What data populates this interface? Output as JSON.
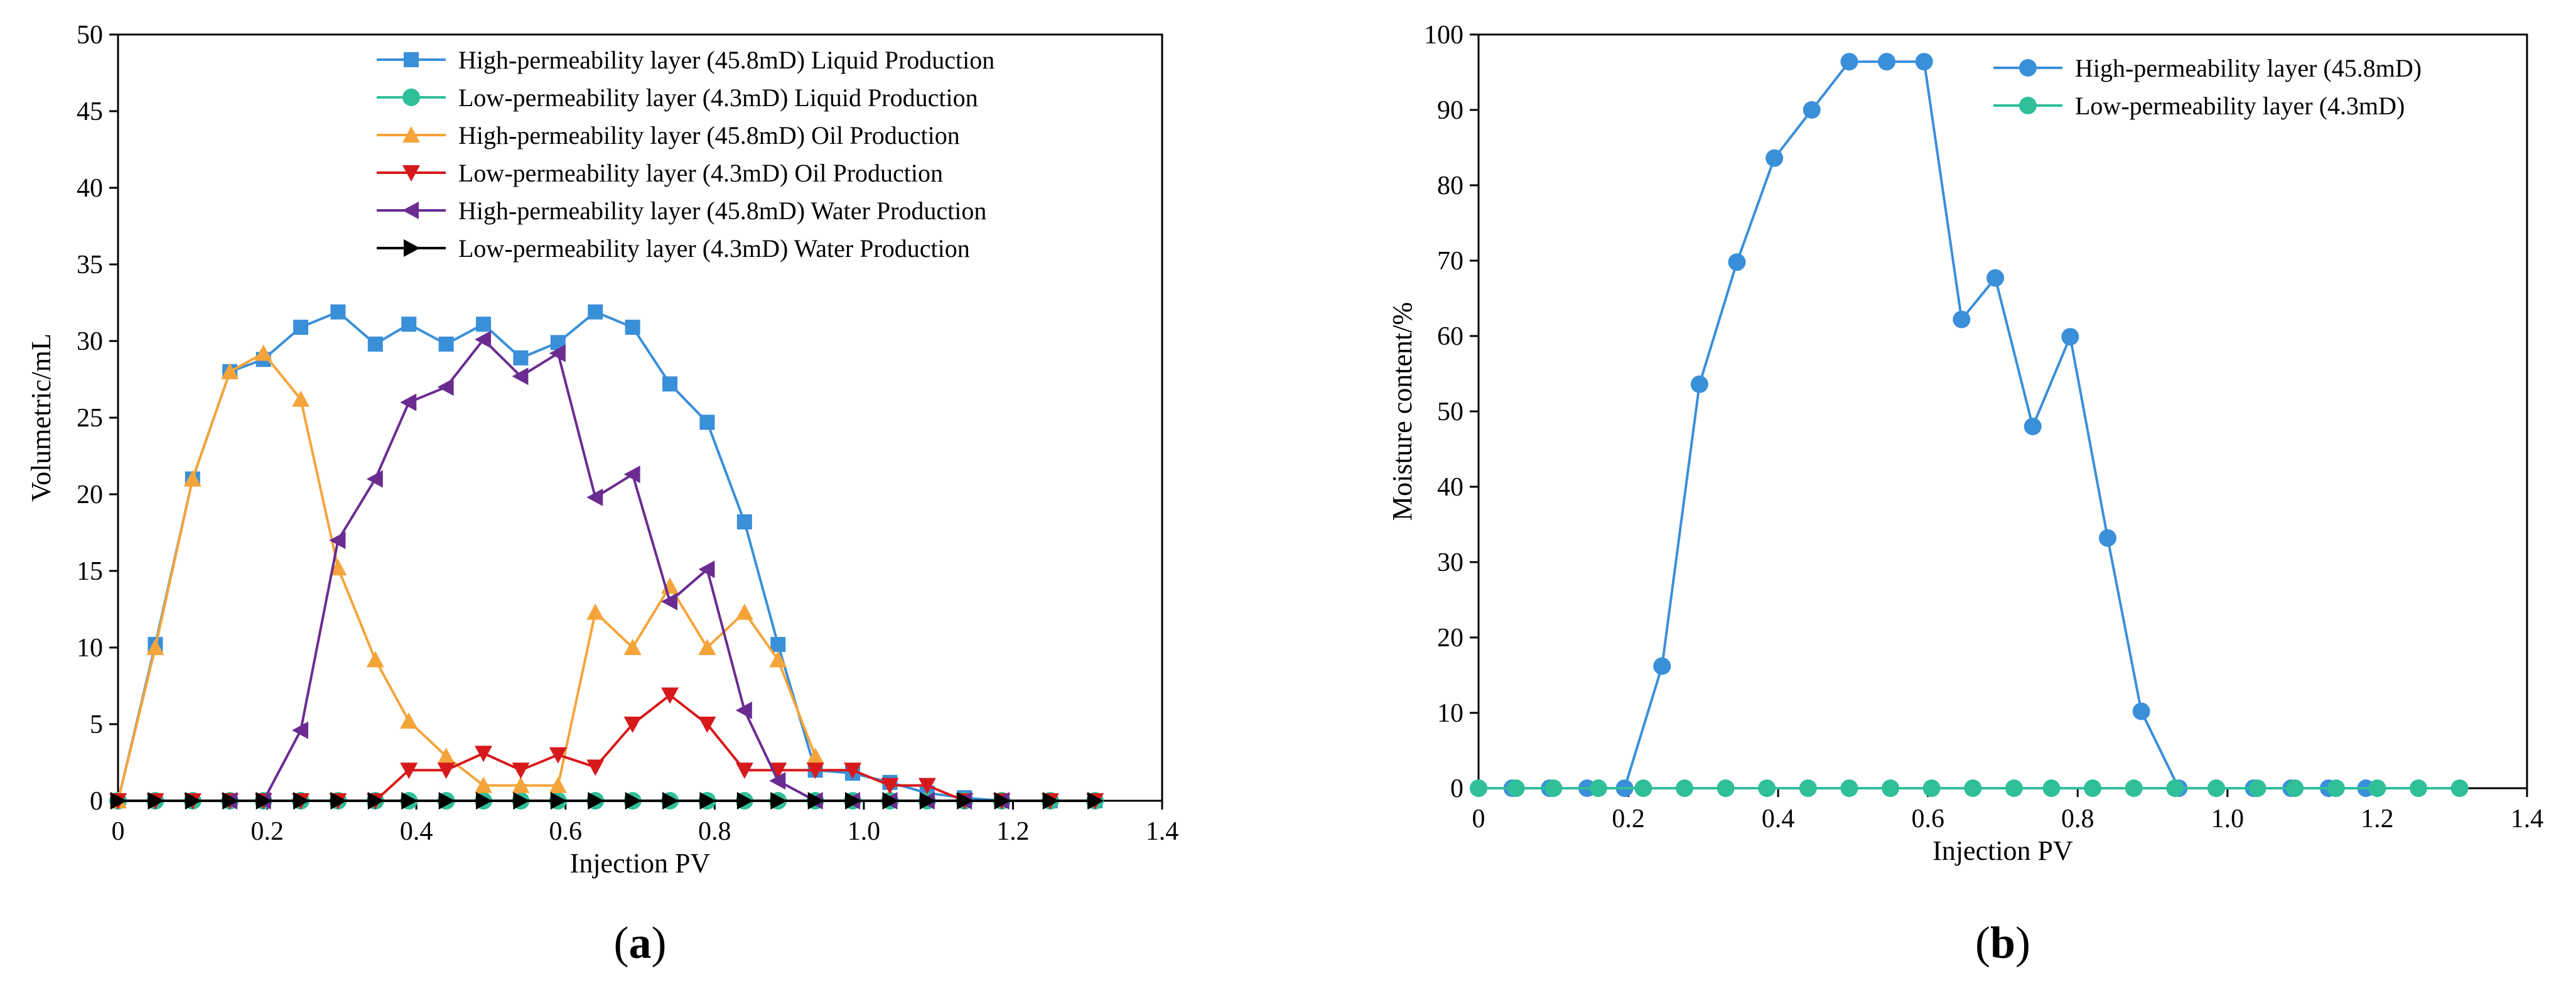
{
  "chart_data": [
    {
      "type": "line",
      "panel_label": "a",
      "xlabel": "Injection PV",
      "ylabel": "Volumetric/mL",
      "xlim": [
        0,
        1.4
      ],
      "ylim": [
        0,
        50
      ],
      "xticks": [
        "0",
        "0.2",
        "0.4",
        "0.6",
        "0.8",
        "1.0",
        "1.2",
        "1.4"
      ],
      "xtick_values": [
        0,
        0.2,
        0.4,
        0.6,
        0.8,
        1.0,
        1.2,
        1.4
      ],
      "yticks": [
        "0",
        "5",
        "10",
        "15",
        "20",
        "25",
        "30",
        "35",
        "40",
        "45",
        "50"
      ],
      "ytick_values": [
        0,
        5,
        10,
        15,
        20,
        25,
        30,
        35,
        40,
        45,
        50
      ],
      "grid": false,
      "legend_position": "top-right",
      "series": [
        {
          "name": "High-permeability layer (45.8mD) Liquid Production",
          "color": "#3a8fd9",
          "marker": "square",
          "x": [
            0,
            0.05,
            0.1,
            0.15,
            0.195,
            0.245,
            0.295,
            0.345,
            0.39,
            0.44,
            0.49,
            0.54,
            0.59,
            0.64,
            0.69,
            0.74,
            0.79,
            0.84,
            0.885,
            0.935,
            0.985,
            1.035,
            1.085,
            1.135,
            1.185,
            1.25,
            1.31
          ],
          "y": [
            0,
            10.2,
            21,
            28,
            28.8,
            30.9,
            31.9,
            29.8,
            31.1,
            29.8,
            31.1,
            28.9,
            29.9,
            31.9,
            30.9,
            27.2,
            24.7,
            18.2,
            10.2,
            2,
            1.8,
            1.2,
            0.5,
            0.2,
            0,
            0,
            0
          ]
        },
        {
          "name": "Low-permeability layer (4.3mD) Liquid Production",
          "color": "#2fbf99",
          "marker": "circle",
          "x": [
            0,
            0.05,
            0.1,
            0.15,
            0.195,
            0.245,
            0.295,
            0.345,
            0.39,
            0.44,
            0.49,
            0.54,
            0.59,
            0.64,
            0.69,
            0.74,
            0.79,
            0.84,
            0.885,
            0.935,
            0.985,
            1.035,
            1.085,
            1.135,
            1.185,
            1.25,
            1.31
          ],
          "y": [
            0,
            0,
            0,
            0,
            0,
            0,
            0,
            0,
            0,
            0,
            0,
            0,
            0,
            0,
            0,
            0,
            0,
            0,
            0,
            0,
            0,
            0,
            0,
            0,
            0,
            0,
            0
          ]
        },
        {
          "name": "High-permeability layer (45.8mD) Oil Production",
          "color": "#f5a43a",
          "marker": "triangle-up",
          "x": [
            0,
            0.05,
            0.1,
            0.15,
            0.195,
            0.245,
            0.295,
            0.345,
            0.39,
            0.44,
            0.49,
            0.54,
            0.59,
            0.64,
            0.69,
            0.74,
            0.79,
            0.84,
            0.885,
            0.935
          ],
          "y": [
            0,
            10,
            21,
            28,
            29.2,
            26.2,
            15.2,
            9.2,
            5.2,
            2.9,
            1,
            1,
            1,
            12.3,
            10,
            14,
            10,
            12.3,
            9.2,
            2.9
          ]
        },
        {
          "name": "Low-permeability layer (4.3mD) Oil Production",
          "color": "#d7191c",
          "marker": "triangle-down",
          "x": [
            0,
            0.05,
            0.1,
            0.15,
            0.195,
            0.245,
            0.295,
            0.345,
            0.39,
            0.44,
            0.49,
            0.54,
            0.59,
            0.64,
            0.69,
            0.74,
            0.79,
            0.84,
            0.885,
            0.935,
            0.985,
            1.035,
            1.085,
            1.135,
            1.185,
            1.25,
            1.31
          ],
          "y": [
            0,
            0,
            0,
            0,
            0,
            0,
            0,
            0,
            2,
            2,
            3.1,
            2,
            3,
            2.2,
            5,
            6.9,
            5,
            2,
            2,
            2,
            2,
            1,
            1,
            0,
            0,
            0,
            0
          ]
        },
        {
          "name": "High-permeability layer (45.8mD) Water Production",
          "color": "#6a2c91",
          "marker": "triangle-left",
          "x": [
            0.15,
            0.195,
            0.245,
            0.295,
            0.345,
            0.39,
            0.44,
            0.49,
            0.54,
            0.59,
            0.64,
            0.69,
            0.74,
            0.79,
            0.84,
            0.885,
            0.935,
            0.985,
            1.035,
            1.085,
            1.135,
            1.185
          ],
          "y": [
            0,
            0,
            4.6,
            17,
            21,
            26,
            27,
            30.1,
            27.7,
            29.2,
            19.8,
            21.3,
            13,
            15.1,
            5.9,
            1.3,
            0,
            0,
            0,
            0,
            0,
            0
          ]
        },
        {
          "name": "Low-permeability layer (4.3mD) Water Production",
          "color": "#000000",
          "marker": "triangle-right",
          "x": [
            0,
            0.05,
            0.1,
            0.15,
            0.195,
            0.245,
            0.295,
            0.345,
            0.39,
            0.44,
            0.49,
            0.54,
            0.59,
            0.64,
            0.69,
            0.74,
            0.79,
            0.84,
            0.885,
            0.935,
            0.985,
            1.035,
            1.085,
            1.135,
            1.185,
            1.25,
            1.31
          ],
          "y": [
            0,
            0,
            0,
            0,
            0,
            0,
            0,
            0,
            0,
            0,
            0,
            0,
            0,
            0,
            0,
            0,
            0,
            0,
            0,
            0,
            0,
            0,
            0,
            0,
            0,
            0,
            0
          ]
        }
      ]
    },
    {
      "type": "line",
      "panel_label": "b",
      "xlabel": "Injection PV",
      "ylabel": "Moisture content/%",
      "xlim": [
        0,
        1.4
      ],
      "ylim": [
        0,
        100
      ],
      "xticks": [
        "0",
        "0.2",
        "0.4",
        "0.6",
        "0.8",
        "1.0",
        "1.2",
        "1.4"
      ],
      "xtick_values": [
        0,
        0.2,
        0.4,
        0.6,
        0.8,
        1.0,
        1.2,
        1.4
      ],
      "yticks": [
        "0",
        "10",
        "20",
        "30",
        "40",
        "50",
        "60",
        "70",
        "80",
        "90",
        "100"
      ],
      "ytick_values": [
        0,
        10,
        20,
        30,
        40,
        50,
        60,
        70,
        80,
        90,
        100
      ],
      "grid": false,
      "legend_position": "top-right",
      "series": [
        {
          "name": "High-permeability layer (45.8mD)",
          "color": "#3a8fd9",
          "marker": "circle",
          "x": [
            0,
            0.045,
            0.095,
            0.145,
            0.195,
            0.245,
            0.295,
            0.345,
            0.395,
            0.445,
            0.495,
            0.545,
            0.595,
            0.645,
            0.69,
            0.74,
            0.79,
            0.84,
            0.885,
            0.935,
            0.985,
            1.035,
            1.085,
            1.135,
            1.185
          ],
          "y": [
            0,
            0,
            0,
            0,
            0,
            16.2,
            53.6,
            69.8,
            83.6,
            90,
            96.4,
            96.4,
            96.4,
            62.2,
            67.7,
            48,
            59.9,
            33.2,
            10.2,
            0,
            0,
            0,
            0,
            0,
            0
          ]
        },
        {
          "name": "Low-permeability layer (4.3mD)",
          "color": "#2fbf99",
          "marker": "circle",
          "x": [
            0,
            0.05,
            0.1,
            0.16,
            0.22,
            0.275,
            0.33,
            0.385,
            0.44,
            0.495,
            0.55,
            0.605,
            0.66,
            0.715,
            0.765,
            0.82,
            0.875,
            0.93,
            0.985,
            1.04,
            1.09,
            1.145,
            1.2,
            1.255,
            1.31
          ],
          "y": [
            0,
            0,
            0,
            0,
            0,
            0,
            0,
            0,
            0,
            0,
            0,
            0,
            0,
            0,
            0,
            0,
            0,
            0,
            0,
            0,
            0,
            0,
            0,
            0,
            0
          ]
        }
      ]
    }
  ]
}
